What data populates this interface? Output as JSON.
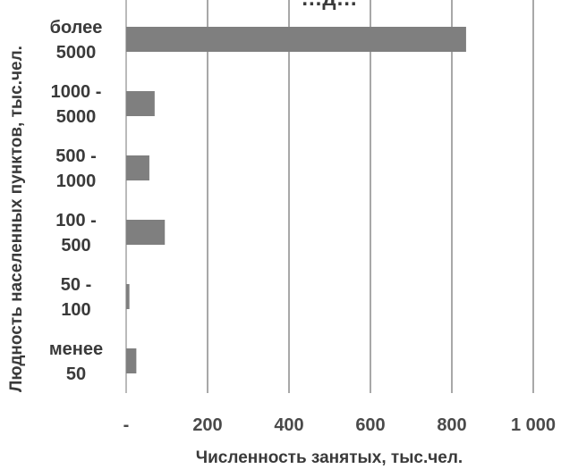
{
  "chart_data": {
    "type": "bar",
    "orientation": "horizontal",
    "title_fragment": "…д…",
    "xlabel": "Численность занятых, тыс.чел.",
    "ylabel": "Людность населенных пунктов, тыс.чел.",
    "xlim": [
      0,
      1000
    ],
    "xticks": [
      0,
      200,
      400,
      600,
      800,
      1000
    ],
    "xtick_labels": [
      "-",
      "200",
      "400",
      "600",
      "800",
      "1 000"
    ],
    "categories": [
      {
        "lines": [
          "более",
          "5000"
        ]
      },
      {
        "lines": [
          "1000 -",
          "5000"
        ]
      },
      {
        "lines": [
          "500 -",
          "1000"
        ]
      },
      {
        "lines": [
          "100 -",
          "500"
        ]
      },
      {
        "lines": [
          "50 -",
          "100"
        ]
      },
      {
        "lines": [
          "менее",
          "50"
        ]
      }
    ],
    "values": [
      835,
      70,
      57,
      95,
      8,
      25
    ],
    "grid": true,
    "legend": "none",
    "colors": {
      "bar": "#7f7f7f",
      "grid": "#8c8c8c",
      "text": "#3a3a3a"
    }
  }
}
